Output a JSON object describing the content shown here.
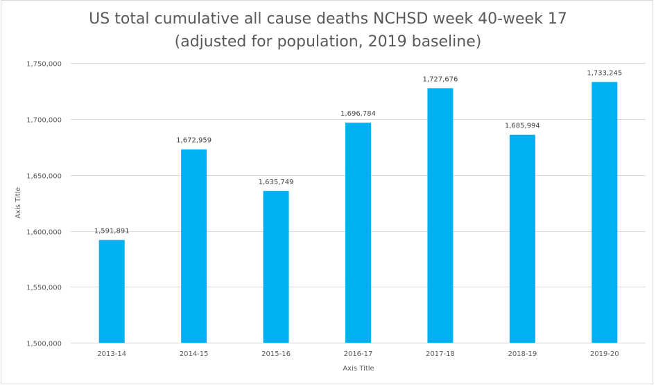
{
  "chart_data": {
    "type": "bar",
    "title": [
      "US total cumulative all cause deaths NCHSD week 40-week 17",
      "(adjusted for population, 2019 baseline)"
    ],
    "xlabel": "Axis Title",
    "ylabel": "Axis Title",
    "categories": [
      "2013-14",
      "2014-15",
      "2015-16",
      "2016-17",
      "2017-18",
      "2018-19",
      "2019-20"
    ],
    "values": [
      1591891,
      1672959,
      1635749,
      1696784,
      1727676,
      1685994,
      1733245
    ],
    "data_labels": [
      "1,591,891",
      "1,672,959",
      "1,635,749",
      "1,696,784",
      "1,727,676",
      "1,685,994",
      "1,733,245"
    ],
    "ylim": [
      1500000,
      1750000
    ],
    "yticks": [
      1500000,
      1550000,
      1600000,
      1650000,
      1700000,
      1750000
    ],
    "ytick_labels": [
      "1,500,000",
      "1,550,000",
      "1,600,000",
      "1,650,000",
      "1,700,000",
      "1,750,000"
    ],
    "grid": true,
    "legend": "none",
    "colors": {
      "bar": "#00B0F0",
      "grid": "#D9D9D9",
      "border": "#D9D9D9"
    }
  }
}
